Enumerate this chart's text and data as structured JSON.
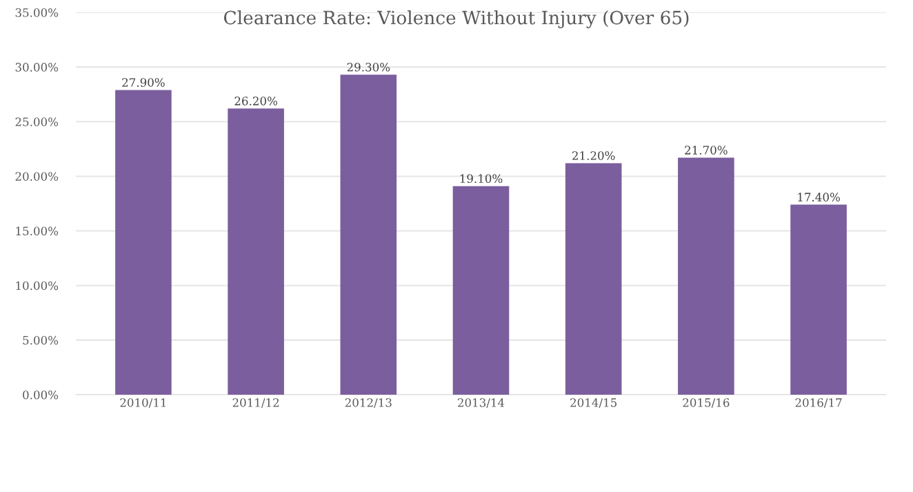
{
  "chart_data": {
    "type": "bar",
    "title": "Clearance Rate: Violence Without Injury (Over 65)",
    "categories": [
      "2010/11",
      "2011/12",
      "2012/13",
      "2013/14",
      "2014/15",
      "2015/16",
      "2016/17"
    ],
    "values": [
      27.9,
      26.2,
      29.3,
      19.1,
      21.2,
      21.7,
      17.4
    ],
    "value_labels": [
      "27.90%",
      "26.20%",
      "29.30%",
      "19.10%",
      "21.20%",
      "21.70%",
      "17.40%"
    ],
    "color": "#7b5e9e",
    "ylim": [
      0,
      35
    ],
    "yticks": [
      {
        "value": 0,
        "label": "0.00%"
      },
      {
        "value": 5,
        "label": "5.00%"
      },
      {
        "value": 10,
        "label": "10.00%"
      },
      {
        "value": 15,
        "label": "15.00%"
      },
      {
        "value": 20,
        "label": "20.00%"
      },
      {
        "value": 25,
        "label": "25.00%"
      },
      {
        "value": 30,
        "label": "30.00%"
      },
      {
        "value": 35,
        "label": "35.00%"
      }
    ],
    "grid": "y",
    "legend": false
  }
}
